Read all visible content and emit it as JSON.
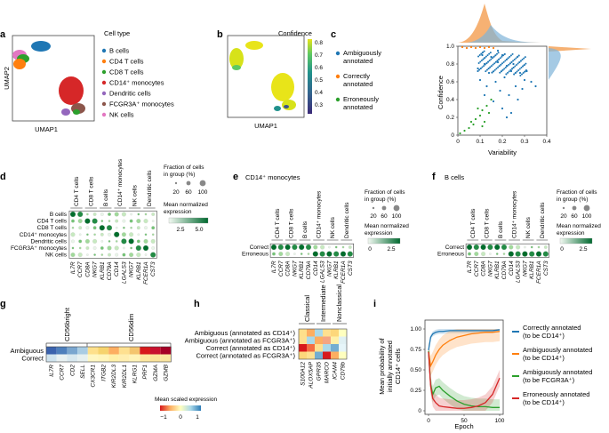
{
  "figure": {
    "panel_letters": [
      "a",
      "b",
      "c",
      "d",
      "e",
      "f",
      "g",
      "h",
      "i"
    ],
    "panel_a": {
      "title": "Cell type",
      "xlabel": "UMAP1",
      "ylabel": "UMAP2",
      "legend": [
        {
          "label": "B cells",
          "color": "#1f77b4"
        },
        {
          "label": "CD4 T cells",
          "color": "#ff7f0e"
        },
        {
          "label": "CD8 T cells",
          "color": "#2ca02c"
        },
        {
          "label": "CD14⁺ monocytes",
          "color": "#d62728"
        },
        {
          "label": "Dendritic cells",
          "color": "#9467bd"
        },
        {
          "label": "FCGR3A⁺ monocytes",
          "color": "#8c564b"
        },
        {
          "label": "NK cells",
          "color": "#e377c2"
        }
      ]
    },
    "panel_b": {
      "title": "Confidence",
      "xlabel": "UMAP1",
      "colorbar_ticks": [
        "0.8",
        "0.7",
        "0.6",
        "0.5",
        "0.4",
        "0.3"
      ],
      "colors": {
        "high": "#e8e419",
        "low": "#3b2a78"
      }
    },
    "panel_c": {
      "legend": [
        {
          "line1": "Ambiguously",
          "line2": "annotated",
          "color": "#1f77b4"
        },
        {
          "line1": "Correctly",
          "line2": "annotated",
          "color": "#ff7f0e"
        },
        {
          "line1": "Erroneously",
          "line2": "annotated",
          "color": "#2ca02c"
        }
      ]
    },
    "panel_d": {
      "groups": [
        "CD4 T cells",
        "CD8 T cells",
        "B cells",
        "CD14⁺ monocytes",
        "NK cells",
        "Dendritic cells"
      ],
      "rows": [
        "B cells",
        "CD4 T cells",
        "CD8 T cells",
        "CD14⁺ monocytes",
        "Dendritic cells",
        "FCGR3A⁺ monocytes",
        "NK cells"
      ],
      "genes": [
        "IL7R",
        "CCR7",
        "CD8A",
        "NKG7",
        "KLRB1",
        "CD79A",
        "CD14",
        "LGALS3",
        "NKG7",
        "KLRB1",
        "FCER1A",
        "CST3"
      ],
      "size_title_1": "Fraction of cells",
      "size_title_2": "in group (%)",
      "size_ticks": [
        "20",
        "60",
        "100"
      ],
      "color_title_1": "Mean normalized",
      "color_title_2": "expression",
      "color_ticks": [
        "2.5",
        "5.0"
      ]
    },
    "panel_e": {
      "title": "CD14⁺ monocytes",
      "rows": [
        "Correct",
        "Erroneous"
      ],
      "color_ticks": [
        "0",
        "2.5"
      ]
    },
    "panel_f": {
      "title": "B cells",
      "rows": [
        "Correct",
        "Erroneous"
      ],
      "color_ticks": [
        "0",
        "2.5"
      ]
    },
    "panel_g": {
      "group_1": "CD56bright",
      "group_2": "CD56dim",
      "rows": [
        "Ambiguous",
        "Correct"
      ],
      "genes": [
        "IL7R",
        "CCR7",
        "CD2",
        "SELL",
        "CX3CR1",
        "ITGB2",
        "KIR2DL3",
        "KIR2DL1",
        "KLRG1",
        "PRF1",
        "GZMA",
        "GZMB"
      ],
      "colorbar_title": "Mean scaled expression",
      "colorbar_ticks": [
        "−1",
        "0",
        "1"
      ]
    },
    "panel_h": {
      "rows": [
        "Ambiguous (annotated as CD14⁺)",
        "Ambiguous (annotated as FCGR3A⁺)",
        "Correct (annotated as CD14⁺)",
        "Correct (annotated as FCGR3A⁺)"
      ],
      "groups": [
        "Classical",
        "Intermediate",
        "Nonclassical"
      ],
      "genes": [
        "S100A12",
        "ALOX5AP",
        "GPR35",
        "MARCO",
        "ICAM4",
        "CD79b"
      ]
    },
    "panel_i": {
      "ylabel_1": "Mean probability of",
      "ylabel_2": "initially annotated",
      "ylabel_3": "CD14⁺ cells",
      "xlabel": "Epoch",
      "legend": [
        {
          "line1": "Correctly annotated",
          "line2": "(to be CD14⁺)",
          "color": "#1f77b4"
        },
        {
          "line1": "Ambiguously annotated",
          "line2": "(to be CD14⁺)",
          "color": "#ff7f0e"
        },
        {
          "line1": "Ambiguously annotated",
          "line2": "(to be FCGR3A⁺)",
          "color": "#2ca02c"
        },
        {
          "line1": "Erroneously annotated",
          "line2": "(to be CD14⁺)",
          "color": "#d62728"
        }
      ]
    }
  },
  "chart_data": [
    {
      "type": "scatter",
      "title": "",
      "xlabel": "Variability",
      "ylabel": "Confidence",
      "xlim": [
        0,
        0.4
      ],
      "ylim": [
        0,
        1.0
      ],
      "x_ticks": [
        "0",
        "0.1",
        "0.2",
        "0.3",
        "0.4"
      ],
      "y_ticks": [
        "0",
        "0.2",
        "0.4",
        "0.6",
        "0.8",
        "1.0"
      ],
      "series": [
        {
          "name": "Ambiguously annotated",
          "color": "#1f77b4",
          "points": [
            [
              0.1,
              0.62
            ],
            [
              0.12,
              0.8
            ],
            [
              0.15,
              0.88
            ],
            [
              0.18,
              0.82
            ],
            [
              0.2,
              0.9
            ],
            [
              0.22,
              0.78
            ],
            [
              0.24,
              0.72
            ],
            [
              0.14,
              0.7
            ],
            [
              0.17,
              0.6
            ],
            [
              0.21,
              0.65
            ],
            [
              0.25,
              0.8
            ],
            [
              0.28,
              0.7
            ],
            [
              0.3,
              0.62
            ],
            [
              0.26,
              0.55
            ],
            [
              0.19,
              0.5
            ],
            [
              0.23,
              0.45
            ],
            [
              0.27,
              0.4
            ],
            [
              0.16,
              0.38
            ],
            [
              0.13,
              0.55
            ],
            [
              0.29,
              0.52
            ],
            [
              0.31,
              0.72
            ],
            [
              0.18,
              0.95
            ],
            [
              0.11,
              0.9
            ],
            [
              0.09,
              0.75
            ],
            [
              0.2,
              0.3
            ],
            [
              0.24,
              0.25
            ],
            [
              0.22,
              0.2
            ],
            [
              0.33,
              0.6
            ],
            [
              0.35,
              0.55
            ],
            [
              0.12,
              0.45
            ]
          ]
        },
        {
          "name": "Correctly annotated",
          "color": "#ff7f0e",
          "points": [
            [
              0.02,
              0.99
            ],
            [
              0.04,
              0.98
            ],
            [
              0.06,
              0.99
            ],
            [
              0.08,
              0.98
            ],
            [
              0.1,
              0.99
            ],
            [
              0.12,
              0.98
            ],
            [
              0.14,
              0.99
            ],
            [
              0.16,
              0.98
            ]
          ]
        },
        {
          "name": "Erroneously annotated",
          "color": "#2ca02c",
          "points": [
            [
              0.01,
              0.02
            ],
            [
              0.03,
              0.05
            ],
            [
              0.05,
              0.08
            ],
            [
              0.07,
              0.12
            ],
            [
              0.08,
              0.18
            ],
            [
              0.1,
              0.22
            ],
            [
              0.11,
              0.28
            ],
            [
              0.12,
              0.15
            ],
            [
              0.13,
              0.33
            ],
            [
              0.14,
              0.25
            ],
            [
              0.09,
              0.3
            ],
            [
              0.06,
              0.15
            ],
            [
              0.15,
              0.4
            ],
            [
              0.11,
              0.1
            ]
          ]
        }
      ]
    },
    {
      "type": "line",
      "xlabel": "Epoch",
      "ylabel": "Mean probability of initially annotated CD14⁺ cells",
      "xlim": [
        0,
        100
      ],
      "ylim": [
        0,
        1.0
      ],
      "x_ticks": [
        "0",
        "50",
        "100"
      ],
      "y_ticks": [
        "0",
        "0.25",
        "0.50",
        "0.75",
        "1.00"
      ],
      "x": [
        0,
        3,
        6,
        10,
        15,
        20,
        30,
        40,
        50,
        60,
        70,
        80,
        90,
        100
      ],
      "series": [
        {
          "name": "Correctly annotated (to be CD14⁺)",
          "color": "#1f77b4",
          "values": [
            0.74,
            0.9,
            0.94,
            0.96,
            0.97,
            0.97,
            0.98,
            0.98,
            0.98,
            0.98,
            0.98,
            0.98,
            0.98,
            0.99
          ]
        },
        {
          "name": "Ambiguously annotated (to be CD14⁺)",
          "color": "#ff7f0e",
          "values": [
            0.72,
            0.55,
            0.6,
            0.68,
            0.75,
            0.8,
            0.86,
            0.9,
            0.92,
            0.94,
            0.95,
            0.96,
            0.96,
            0.97
          ]
        },
        {
          "name": "Ambiguously annotated (to be FCGR3A⁺)",
          "color": "#2ca02c",
          "values": [
            0.73,
            0.32,
            0.2,
            0.28,
            0.3,
            0.25,
            0.18,
            0.12,
            0.08,
            0.06,
            0.05,
            0.05,
            0.04,
            0.04
          ]
        },
        {
          "name": "Erroneously annotated (to be CD14⁺)",
          "color": "#d62728",
          "values": [
            0.72,
            0.3,
            0.15,
            0.1,
            0.06,
            0.05,
            0.04,
            0.03,
            0.03,
            0.04,
            0.06,
            0.1,
            0.2,
            0.4
          ]
        }
      ]
    }
  ]
}
